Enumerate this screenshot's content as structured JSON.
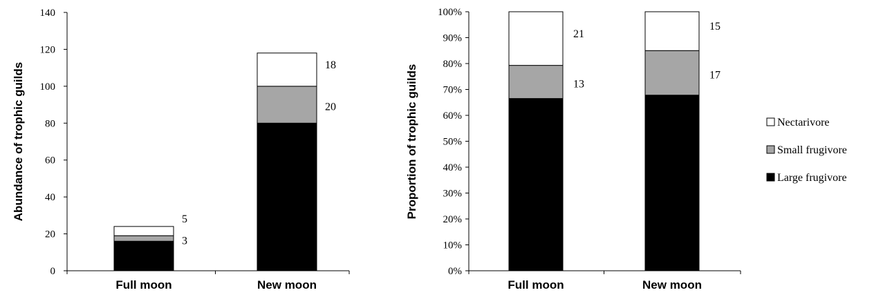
{
  "chart_data": [
    {
      "type": "bar",
      "stacked": true,
      "categories": [
        "Full moon",
        "New moon"
      ],
      "ylabel": "Abundance of trophic guilds",
      "ylim": [
        0,
        140
      ],
      "yticks": [
        "0",
        "20",
        "40",
        "60",
        "80",
        "100",
        "120",
        "140"
      ],
      "series": [
        {
          "name": "Large frugivore",
          "values": [
            16,
            80
          ],
          "color": "#000000"
        },
        {
          "name": "Small frugivore",
          "values": [
            3,
            20
          ],
          "color": "#a6a6a6"
        },
        {
          "name": "Nectarivore",
          "values": [
            5,
            18
          ],
          "color": "#ffffff"
        }
      ],
      "data_labels": [
        {
          "category": "Full moon",
          "series": "Nectarivore",
          "text": "5"
        },
        {
          "category": "Full moon",
          "series": "Small frugivore",
          "text": "3"
        },
        {
          "category": "New moon",
          "series": "Nectarivore",
          "text": "18"
        },
        {
          "category": "New moon",
          "series": "Small frugivore",
          "text": "20"
        }
      ]
    },
    {
      "type": "bar",
      "stacked": true,
      "percent": true,
      "categories": [
        "Full moon",
        "New moon"
      ],
      "ylabel": "Proportion of trophic guilds",
      "ylim": [
        0,
        100
      ],
      "yticks": [
        "0%",
        "10%",
        "20%",
        "30%",
        "40%",
        "50%",
        "60%",
        "70%",
        "80%",
        "90%",
        "100%"
      ],
      "series": [
        {
          "name": "Large frugivore",
          "values": [
            66.5,
            67.8
          ],
          "color": "#000000"
        },
        {
          "name": "Small frugivore",
          "values": [
            12.8,
            17.2
          ],
          "color": "#a6a6a6"
        },
        {
          "name": "Nectarivore",
          "values": [
            20.7,
            15.0
          ],
          "color": "#ffffff"
        }
      ],
      "data_labels": [
        {
          "category": "Full moon",
          "series": "Nectarivore",
          "text": "21"
        },
        {
          "category": "Full moon",
          "series": "Small frugivore",
          "text": "13"
        },
        {
          "category": "New moon",
          "series": "Nectarivore",
          "text": "15"
        },
        {
          "category": "New moon",
          "series": "Small frugivore",
          "text": "17"
        }
      ]
    }
  ],
  "legend": {
    "placement": "right",
    "items": [
      {
        "label": "Nectarivore",
        "color": "#ffffff"
      },
      {
        "label": "Small frugivore",
        "color": "#a6a6a6"
      },
      {
        "label": "Large frugivore",
        "color": "#000000"
      }
    ]
  }
}
